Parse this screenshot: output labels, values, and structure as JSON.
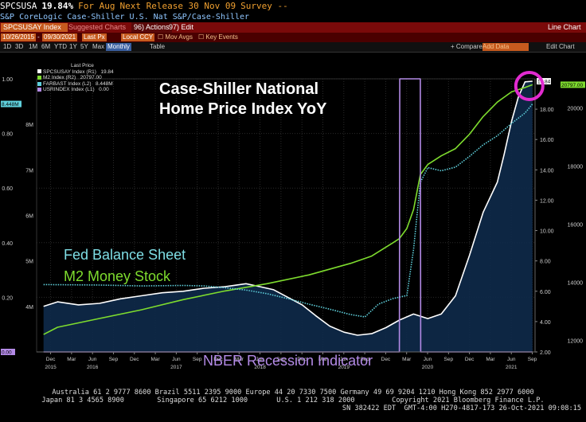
{
  "header": {
    "ticker": "SPCSUSA",
    "last_value": "19.84%",
    "for_period": "For Aug",
    "next_release": "Next Release 30 Nov 09",
    "survey": "Survey --",
    "description": "S&P CoreLogic Case-Shiller U.S. Nat S&P/Case-Shiller"
  },
  "toolbar": {
    "security": "SPCSUSAY Index",
    "suggested_charts": "Suggested Charts",
    "actions": "96) Actions",
    "edit": "97) Edit",
    "chart_type": "Line Chart"
  },
  "rangebar": {
    "start_date": "10/26/2015",
    "end_date": "09/30/2021",
    "price_field": "Last Px",
    "currency": "Local CCY",
    "mov_avgs": "Mov Avgs",
    "key_events": "Key Events"
  },
  "periodbar": {
    "periods": [
      "1D",
      "3D",
      "1M",
      "6M",
      "YTD",
      "1Y",
      "5Y",
      "Max"
    ],
    "frequency": "Monthly",
    "table": "Table",
    "compare": "+ Compare",
    "add_data": "Add Data",
    "edit_chart": "Edit Chart"
  },
  "legend": {
    "header": "Last Price",
    "items": [
      {
        "label": "SPCSUSAY Index (R1)",
        "value": "19.84",
        "color": "#ffffff"
      },
      {
        "label": "M2 Index (R2)",
        "value": "20797.00",
        "color": "#7edc2e"
      },
      {
        "label": "FARBAST Index (L2)",
        "value": "8.448M",
        "color": "#5fd0dc"
      },
      {
        "label": "USRINDEX Index (L1)",
        "value": "0.00",
        "color": "#b38ae6"
      }
    ]
  },
  "annotations": {
    "title_line1": "Case-Shiller National",
    "title_line2": "Home Price Index YoY",
    "fed": "Fed Balance Sheet",
    "m2": "M2 Money Stock",
    "nber": "NBER Recession Indicator"
  },
  "footer": {
    "line1": "Australia 61 2 9777 8600 Brazil 5511 2395 9000 Europe 44 20 7330 7500 Germany 49 69 9204 1210 Hong Kong 852 2977 6000",
    "line2": "Japan 81 3 4565 8900        Singapore 65 6212 1000       U.S. 1 212 318 2000         Copyright 2021 Bloomberg Finance L.P.",
    "line3": "SN 382422 EDT  GMT-4:00 H270-4817-173 26-Oct-2021 09:08:15"
  },
  "chart_data": {
    "type": "line",
    "x_range": [
      "2015-10",
      "2021-09"
    ],
    "x_ticks": [
      {
        "label": "Dec",
        "t": 2015.917
      },
      {
        "label": "Mar",
        "t": 2016.167
      },
      {
        "label": "Jun",
        "t": 2016.417
      },
      {
        "label": "Sep",
        "t": 2016.667
      },
      {
        "label": "Dec",
        "t": 2016.917
      },
      {
        "label": "Mar",
        "t": 2017.167
      },
      {
        "label": "Jun",
        "t": 2017.417
      },
      {
        "label": "Sep",
        "t": 2017.667
      },
      {
        "label": "Dec",
        "t": 2017.917
      },
      {
        "label": "Mar",
        "t": 2018.167
      },
      {
        "label": "Jun",
        "t": 2018.417
      },
      {
        "label": "Sep",
        "t": 2018.667
      },
      {
        "label": "Dec",
        "t": 2018.917
      },
      {
        "label": "Mar",
        "t": 2019.167
      },
      {
        "label": "Jun",
        "t": 2019.417
      },
      {
        "label": "Sep",
        "t": 2019.667
      },
      {
        "label": "Dec",
        "t": 2019.917
      },
      {
        "label": "Mar",
        "t": 2020.167
      },
      {
        "label": "Jun",
        "t": 2020.417
      },
      {
        "label": "Sep",
        "t": 2020.667
      },
      {
        "label": "Dec",
        "t": 2020.917
      },
      {
        "label": "Mar",
        "t": 2021.167
      },
      {
        "label": "Jun",
        "t": 2021.417
      },
      {
        "label": "Sep",
        "t": 2021.667
      }
    ],
    "year_labels": [
      {
        "label": "2015",
        "t": 2015.917
      },
      {
        "label": "2016",
        "t": 2016.417
      },
      {
        "label": "2017",
        "t": 2017.417
      },
      {
        "label": "2018",
        "t": 2018.417
      },
      {
        "label": "2019",
        "t": 2019.417
      },
      {
        "label": "2020",
        "t": 2020.417
      },
      {
        "label": "2021",
        "t": 2021.417
      }
    ],
    "axis_L1": {
      "name": "USRINDEX",
      "range": [
        0,
        1.0
      ],
      "ticks": [
        "0.00",
        "0.20",
        "0.40",
        "0.60",
        "0.80",
        "1.00"
      ],
      "tick_values": [
        0,
        0.2,
        0.4,
        0.6,
        0.8,
        1.0
      ]
    },
    "axis_L2": {
      "name": "FARBAST",
      "range": [
        3.0,
        9.0
      ],
      "ticks": [
        "4M",
        "5M",
        "6M",
        "7M",
        "8M"
      ],
      "tick_values": [
        4,
        5,
        6,
        7,
        8
      ]
    },
    "axis_R1": {
      "name": "SPCSUSAY",
      "range": [
        2.0,
        20.0
      ],
      "ticks": [
        "2.00",
        "4.00",
        "6.00",
        "8.00",
        "10.00",
        "12.00",
        "14.00",
        "16.00",
        "18.00"
      ],
      "tick_values": [
        2,
        4,
        6,
        8,
        10,
        12,
        14,
        16,
        18
      ]
    },
    "axis_R2": {
      "name": "M2",
      "range": [
        11600,
        21000
      ],
      "ticks": [
        "12000",
        "14000",
        "16000",
        "18000",
        "20000"
      ],
      "tick_values": [
        12000,
        14000,
        16000,
        18000,
        20000
      ]
    },
    "series": [
      {
        "name": "SPCSUSAY Index",
        "axis": "R1",
        "color": "#ffffff",
        "fill": true,
        "points": [
          [
            2015.833,
            5.0
          ],
          [
            2016.0,
            5.3
          ],
          [
            2016.25,
            5.1
          ],
          [
            2016.5,
            5.2
          ],
          [
            2016.75,
            5.5
          ],
          [
            2017.0,
            5.7
          ],
          [
            2017.25,
            5.9
          ],
          [
            2017.5,
            6.0
          ],
          [
            2017.75,
            6.2
          ],
          [
            2018.0,
            6.3
          ],
          [
            2018.25,
            6.5
          ],
          [
            2018.42,
            6.3
          ],
          [
            2018.58,
            6.1
          ],
          [
            2018.75,
            5.6
          ],
          [
            2018.92,
            5.1
          ],
          [
            2019.08,
            4.4
          ],
          [
            2019.25,
            3.7
          ],
          [
            2019.42,
            3.3
          ],
          [
            2019.58,
            3.1
          ],
          [
            2019.75,
            3.2
          ],
          [
            2019.92,
            3.6
          ],
          [
            2020.08,
            4.1
          ],
          [
            2020.25,
            4.5
          ],
          [
            2020.42,
            4.2
          ],
          [
            2020.58,
            4.5
          ],
          [
            2020.75,
            5.7
          ],
          [
            2020.92,
            8.4
          ],
          [
            2021.08,
            11.2
          ],
          [
            2021.25,
            13.2
          ],
          [
            2021.33,
            15.0
          ],
          [
            2021.42,
            17.2
          ],
          [
            2021.5,
            18.8
          ],
          [
            2021.58,
            19.8
          ],
          [
            2021.67,
            19.84
          ]
        ]
      },
      {
        "name": "M2 Index",
        "axis": "R2",
        "color": "#7edc2e",
        "fill": false,
        "points": [
          [
            2015.833,
            12200
          ],
          [
            2016.0,
            12450
          ],
          [
            2016.5,
            12750
          ],
          [
            2017.0,
            13050
          ],
          [
            2017.5,
            13400
          ],
          [
            2018.0,
            13700
          ],
          [
            2018.5,
            13950
          ],
          [
            2019.0,
            14250
          ],
          [
            2019.5,
            14650
          ],
          [
            2019.75,
            14900
          ],
          [
            2020.0,
            15350
          ],
          [
            2020.08,
            15500
          ],
          [
            2020.17,
            15850
          ],
          [
            2020.25,
            16500
          ],
          [
            2020.33,
            17700
          ],
          [
            2020.42,
            18050
          ],
          [
            2020.58,
            18350
          ],
          [
            2020.75,
            18600
          ],
          [
            2020.92,
            19100
          ],
          [
            2021.08,
            19700
          ],
          [
            2021.25,
            20200
          ],
          [
            2021.42,
            20550
          ],
          [
            2021.58,
            20700
          ],
          [
            2021.67,
            20797
          ]
        ]
      },
      {
        "name": "FARBAST Index",
        "axis": "L2",
        "color": "#5fd0dc",
        "fill": false,
        "dotted": true,
        "points": [
          [
            2015.833,
            4.48
          ],
          [
            2016.5,
            4.47
          ],
          [
            2017.0,
            4.45
          ],
          [
            2017.5,
            4.46
          ],
          [
            2017.75,
            4.45
          ],
          [
            2018.0,
            4.41
          ],
          [
            2018.25,
            4.36
          ],
          [
            2018.5,
            4.28
          ],
          [
            2018.75,
            4.17
          ],
          [
            2019.0,
            4.05
          ],
          [
            2019.25,
            3.94
          ],
          [
            2019.5,
            3.82
          ],
          [
            2019.67,
            3.77
          ],
          [
            2019.83,
            4.05
          ],
          [
            2020.0,
            4.17
          ],
          [
            2020.17,
            4.24
          ],
          [
            2020.25,
            5.25
          ],
          [
            2020.33,
            6.72
          ],
          [
            2020.42,
            7.05
          ],
          [
            2020.58,
            6.98
          ],
          [
            2020.75,
            7.06
          ],
          [
            2020.92,
            7.3
          ],
          [
            2021.08,
            7.55
          ],
          [
            2021.25,
            7.75
          ],
          [
            2021.42,
            8.02
          ],
          [
            2021.58,
            8.25
          ],
          [
            2021.67,
            8.448
          ]
        ]
      },
      {
        "name": "USRINDEX Index",
        "axis": "L1",
        "color": "#b38ae6",
        "fill": false,
        "points": [
          [
            2015.833,
            0.0
          ],
          [
            2020.08,
            0.0
          ],
          [
            2020.085,
            1.0
          ],
          [
            2020.33,
            1.0
          ],
          [
            2020.335,
            0.0
          ],
          [
            2021.67,
            0.0
          ]
        ]
      }
    ],
    "last_value_tags": [
      {
        "label": "19.84",
        "axis": "R1",
        "value": 19.84,
        "bg": "#ffffff",
        "fg": "#000000"
      },
      {
        "label": "20797.00",
        "axis": "R2",
        "value": 20797,
        "bg": "#7edc2e",
        "fg": "#000000"
      },
      {
        "label": "8.448M",
        "axis": "L2",
        "value": 8.448,
        "bg": "#5fd0dc",
        "fg": "#000000"
      },
      {
        "label": "0.00",
        "axis": "L1",
        "value": 0.0,
        "bg": "#b38ae6",
        "fg": "#000000"
      }
    ]
  }
}
